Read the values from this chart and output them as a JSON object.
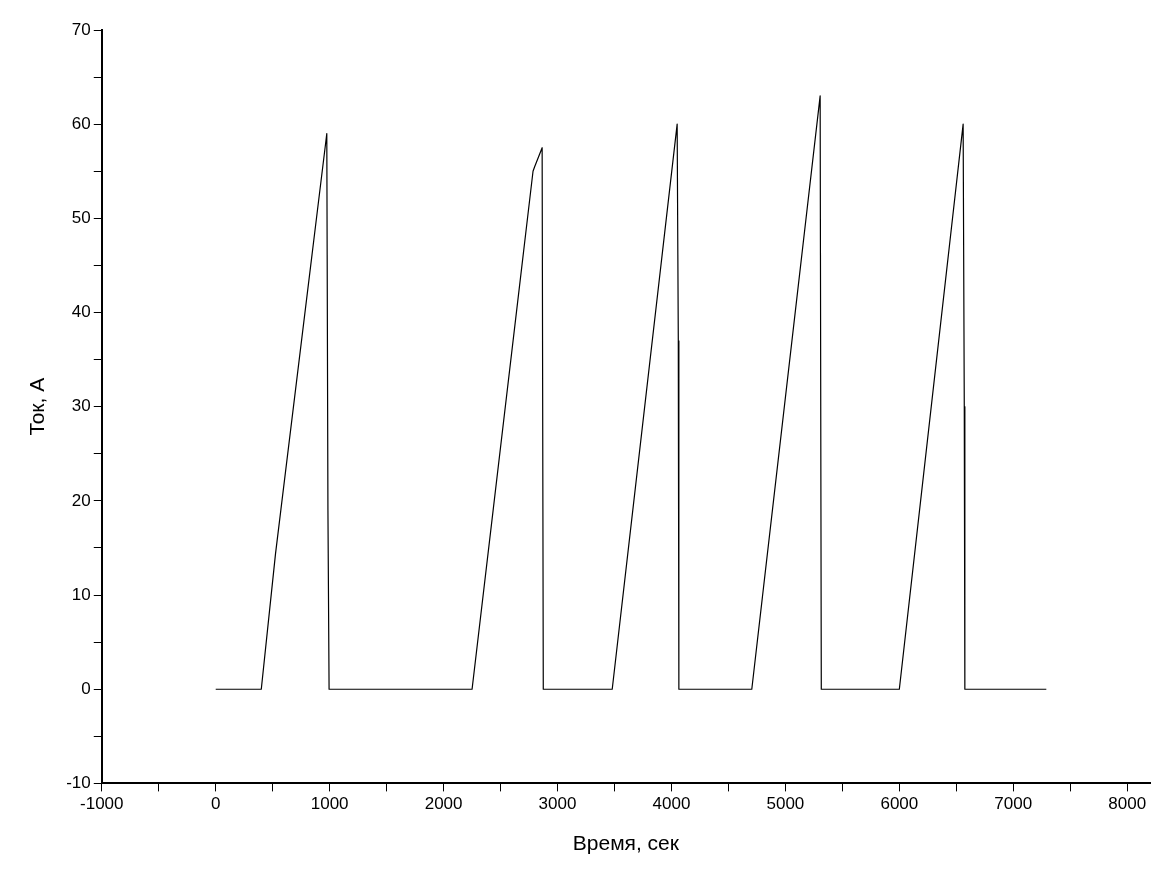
{
  "chart_data": {
    "type": "line",
    "xlabel": "Время, сек",
    "ylabel": "Ток, А",
    "x": [
      0,
      400,
      525,
      965,
      975,
      985,
      995,
      2250,
      2785,
      2800,
      2865,
      2875,
      3480,
      4050,
      4060,
      4065,
      4070,
      4705,
      5305,
      5315,
      6000,
      6560,
      6570,
      6575,
      6580,
      7290
    ],
    "values": [
      0,
      0,
      14.4,
      58,
      59,
      19,
      0,
      0,
      55,
      55.5,
      57.5,
      0,
      0,
      60,
      37,
      0,
      0,
      0,
      63,
      0,
      0,
      60,
      30,
      0,
      0,
      0
    ],
    "color": "#000000",
    "xlim": [
      -1000,
      8200
    ],
    "xticks": [
      -1000,
      {
        "value": -500,
        "label": null
      },
      0,
      {
        "value": 500,
        "label": null
      },
      1000,
      {
        "value": 1500,
        "label": null
      },
      2000,
      {
        "value": 2500,
        "label": null
      },
      3000,
      {
        "value": 3500,
        "label": null
      },
      4000,
      {
        "value": 4500,
        "label": null
      },
      5000,
      {
        "value": 5500,
        "label": null
      },
      6000,
      {
        "value": 6500,
        "label": null
      },
      7000,
      {
        "value": 7500,
        "label": null
      },
      8000
    ],
    "ylim": [
      -10,
      70
    ],
    "yticks": [
      -10,
      {
        "value": -5,
        "label": null
      },
      0,
      {
        "value": 5,
        "label": null
      },
      10,
      {
        "value": 15,
        "label": null
      },
      20,
      {
        "value": 25,
        "label": null
      },
      30,
      {
        "value": 35,
        "label": null
      },
      40,
      {
        "value": 45,
        "label": null
      },
      50,
      {
        "value": 55,
        "label": null
      },
      60,
      {
        "value": 65,
        "label": null
      },
      70
    ],
    "grid": false,
    "legend": false,
    "marker": "none",
    "line_style": "solid"
  }
}
